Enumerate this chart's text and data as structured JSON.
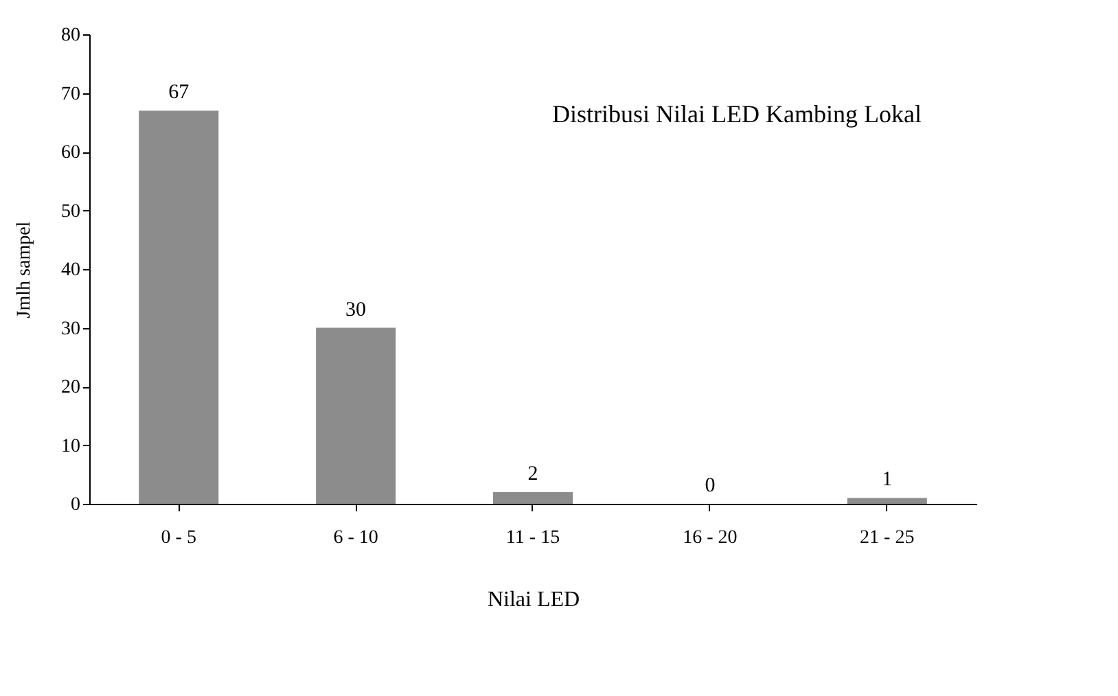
{
  "chart_data": {
    "type": "bar",
    "title": "Distribusi Nilai LED Kambing Lokal",
    "xlabel": "Nilai LED",
    "ylabel": "Jmlh sampel",
    "categories": [
      "0 - 5",
      "6 - 10",
      "11 - 15",
      "16 - 20",
      "21 - 25"
    ],
    "values": [
      67,
      30,
      2,
      0,
      1
    ],
    "color": "#8c8c8c",
    "ylim": [
      0,
      80
    ],
    "yticks": [
      0,
      10,
      20,
      30,
      40,
      50,
      60,
      70,
      80
    ],
    "grid": false,
    "data_labels": true
  }
}
